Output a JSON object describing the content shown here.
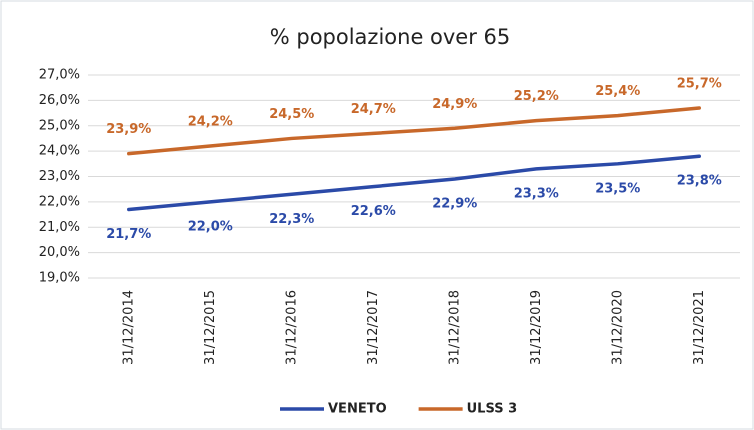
{
  "chart_data": {
    "type": "line",
    "title": "% popolazione over 65",
    "categories": [
      "31/12/2014",
      "31/12/2015",
      "31/12/2016",
      "31/12/2017",
      "31/12/2018",
      "31/12/2019",
      "31/12/2020",
      "31/12/2021"
    ],
    "series": [
      {
        "name": "VENETO",
        "color": "#2b4aa8",
        "values": [
          21.7,
          22.0,
          22.3,
          22.6,
          22.9,
          23.3,
          23.5,
          23.8
        ],
        "value_labels": [
          "21,7%",
          "22,0%",
          "22,3%",
          "22,6%",
          "22,9%",
          "23,3%",
          "23,5%",
          "23,8%"
        ]
      },
      {
        "name": "ULSS 3",
        "color": "#c8682a",
        "values": [
          23.9,
          24.2,
          24.5,
          24.7,
          24.9,
          25.2,
          25.4,
          25.7
        ],
        "value_labels": [
          "23,9%",
          "24,2%",
          "24,5%",
          "24,7%",
          "24,9%",
          "25,2%",
          "25,4%",
          "25,7%"
        ]
      }
    ],
    "ylim": [
      19,
      27
    ],
    "yticks": [
      {
        "value": 19,
        "label": "19,0%"
      },
      {
        "value": 20,
        "label": "20,0%"
      },
      {
        "value": 21,
        "label": "21,0%"
      },
      {
        "value": 22,
        "label": "22,0%"
      },
      {
        "value": 23,
        "label": "23,0%"
      },
      {
        "value": 24,
        "label": "24,0%"
      },
      {
        "value": 25,
        "label": "25,0%"
      },
      {
        "value": 26,
        "label": "26,0%"
      },
      {
        "value": 27,
        "label": "27,0%"
      }
    ],
    "grid": true,
    "legend": "bottom"
  }
}
